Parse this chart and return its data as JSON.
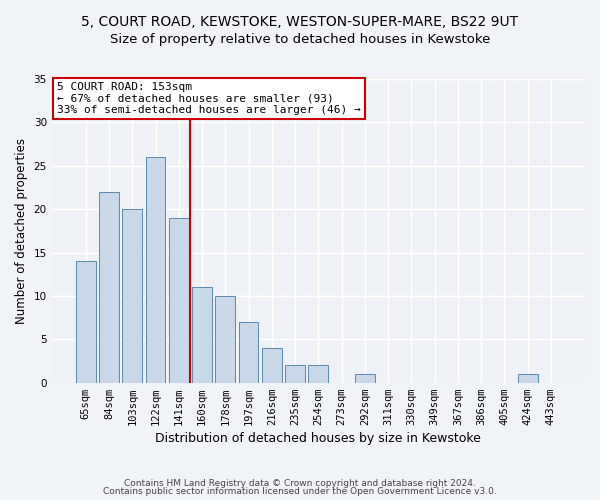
{
  "title1": "5, COURT ROAD, KEWSTOKE, WESTON-SUPER-MARE, BS22 9UT",
  "title2": "Size of property relative to detached houses in Kewstoke",
  "xlabel": "Distribution of detached houses by size in Kewstoke",
  "ylabel": "Number of detached properties",
  "categories": [
    "65sqm",
    "84sqm",
    "103sqm",
    "122sqm",
    "141sqm",
    "160sqm",
    "178sqm",
    "197sqm",
    "216sqm",
    "235sqm",
    "254sqm",
    "273sqm",
    "292sqm",
    "311sqm",
    "330sqm",
    "349sqm",
    "367sqm",
    "386sqm",
    "405sqm",
    "424sqm",
    "443sqm"
  ],
  "values": [
    14,
    22,
    20,
    26,
    19,
    11,
    10,
    7,
    4,
    2,
    2,
    0,
    1,
    0,
    0,
    0,
    0,
    0,
    0,
    1,
    0
  ],
  "bar_color": "#c8d8e8",
  "bar_edge_color": "#5a8ab0",
  "vline_x": 4.5,
  "vline_color": "#cc0000",
  "annotation_line1": "5 COURT ROAD: 153sqm",
  "annotation_line2": "← 67% of detached houses are smaller (93)",
  "annotation_line3": "33% of semi-detached houses are larger (46) →",
  "annotation_box_color": "#ffffff",
  "annotation_box_edge_color": "#cc0000",
  "ylim": [
    0,
    35
  ],
  "yticks": [
    0,
    5,
    10,
    15,
    20,
    25,
    30,
    35
  ],
  "footer1": "Contains HM Land Registry data © Crown copyright and database right 2024.",
  "footer2": "Contains public sector information licensed under the Open Government Licence v3.0.",
  "bg_color": "#eef2f7",
  "grid_color": "#ffffff",
  "title1_fontsize": 10,
  "title2_fontsize": 9.5,
  "xlabel_fontsize": 9,
  "ylabel_fontsize": 8.5,
  "annot_fontsize": 8,
  "tick_fontsize": 7.5,
  "footer_fontsize": 6.5
}
